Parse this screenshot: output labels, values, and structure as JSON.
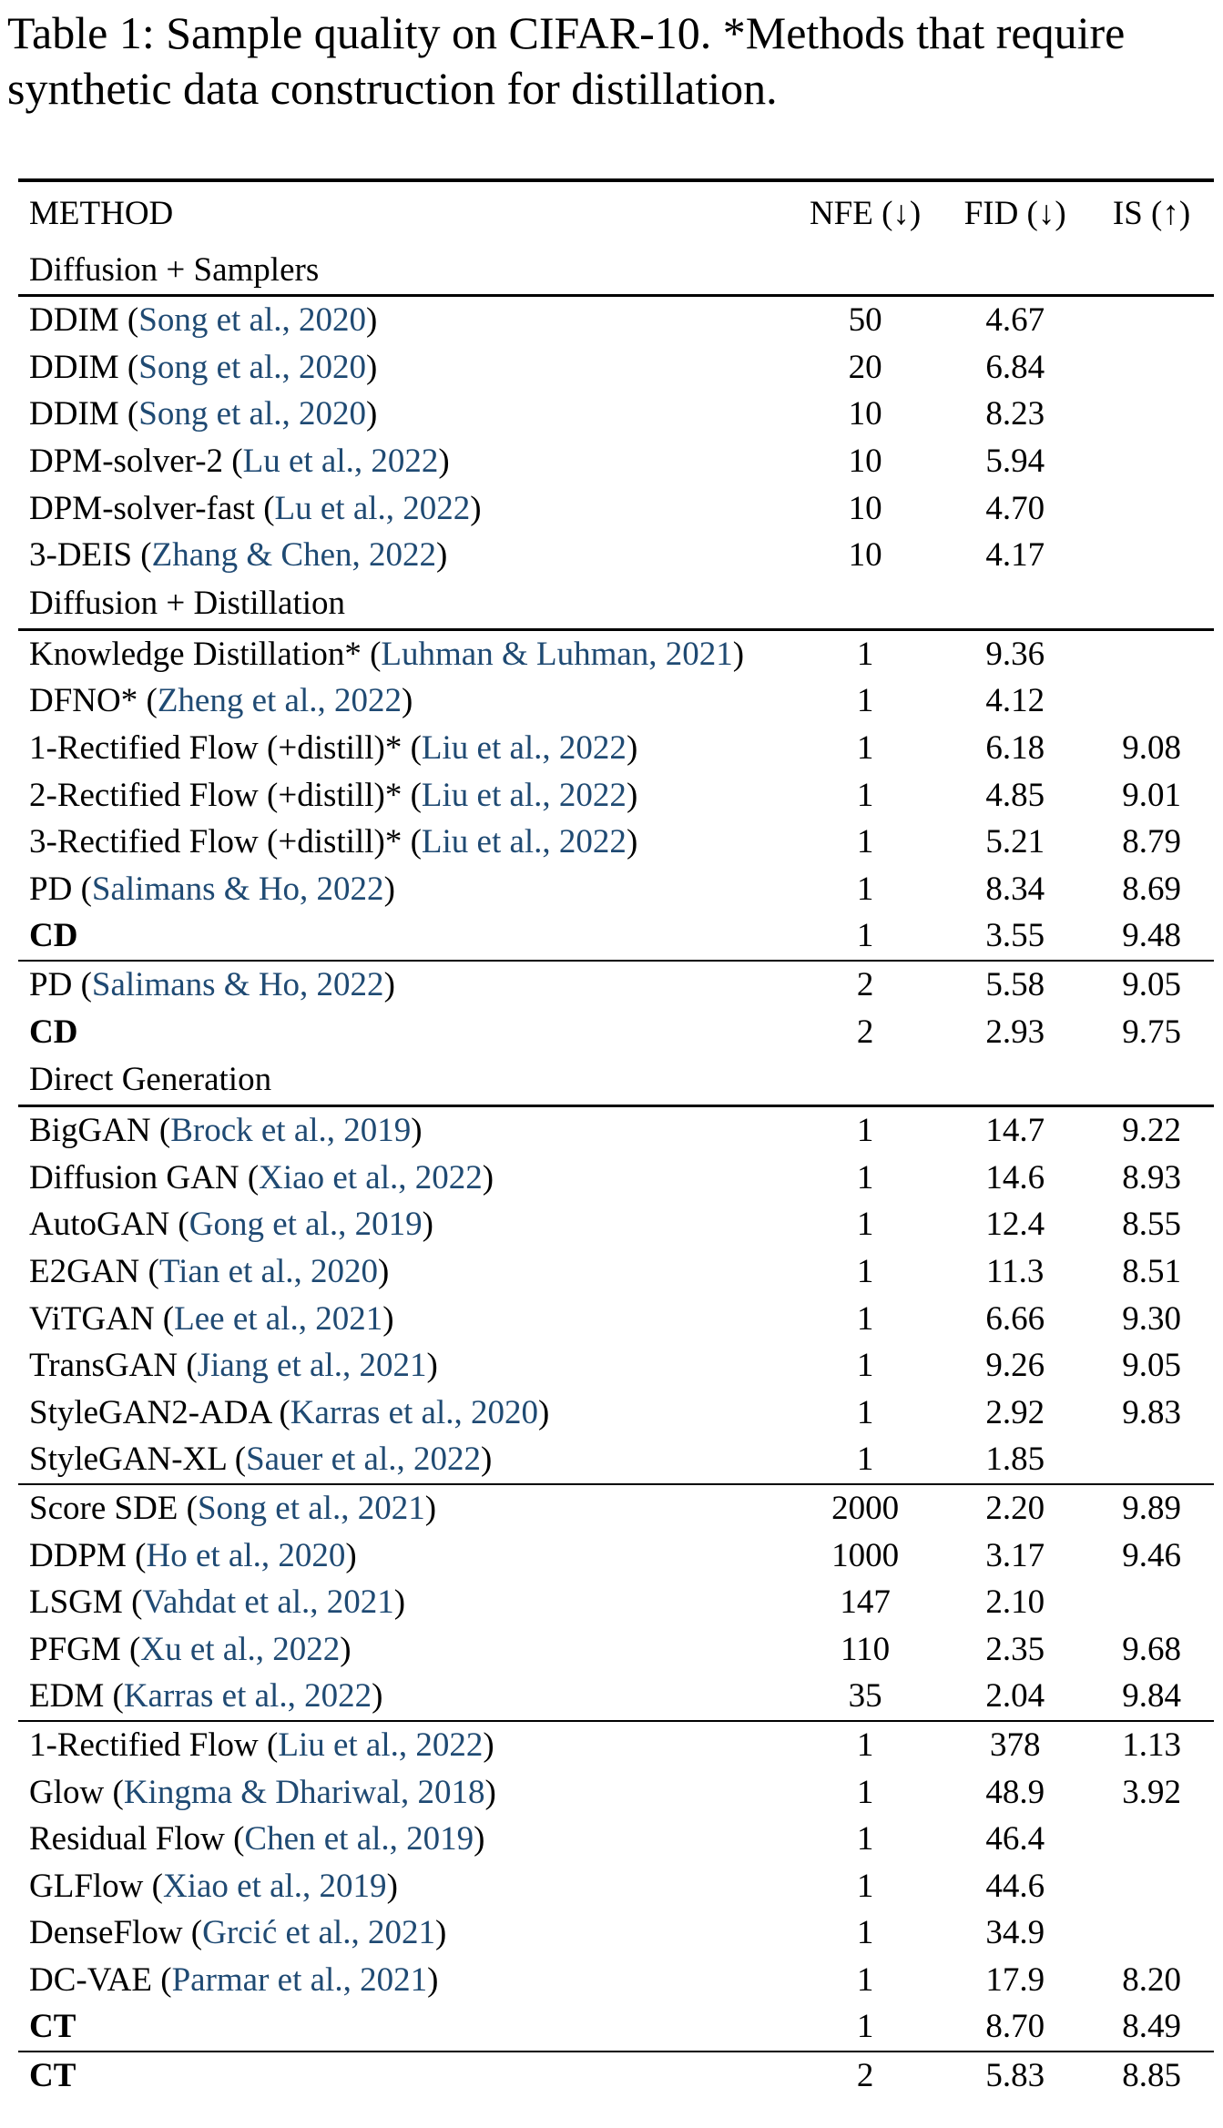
{
  "caption": "Table 1: Sample quality on CIFAR-10. *Methods that require synthetic data construction for distillation.",
  "header": {
    "method": "METHOD",
    "nfe": "NFE (↓)",
    "fid": "FID (↓)",
    "is": "IS (↑)"
  },
  "groups": [
    {
      "title": "Diffusion + Samplers",
      "rows": [
        {
          "m": "DDIM",
          "c": "Song et al., 2020",
          "nfe": "50",
          "fid": "4.67",
          "is": ""
        },
        {
          "m": "DDIM",
          "c": "Song et al., 2020",
          "nfe": "20",
          "fid": "6.84",
          "is": ""
        },
        {
          "m": "DDIM",
          "c": "Song et al., 2020",
          "nfe": "10",
          "fid": "8.23",
          "is": ""
        },
        {
          "m": "DPM-solver-2",
          "c": "Lu et al., 2022",
          "nfe": "10",
          "fid": "5.94",
          "is": ""
        },
        {
          "m": "DPM-solver-fast",
          "c": "Lu et al., 2022",
          "nfe": "10",
          "fid": "4.70",
          "is": ""
        },
        {
          "m": "3-DEIS",
          "c": "Zhang & Chen, 2022",
          "nfe": "10",
          "fid": "4.17",
          "is": "",
          "bfid": true
        }
      ]
    },
    {
      "title": "Diffusion + Distillation",
      "rows": [
        {
          "m": "Knowledge Distillation*",
          "c": "Luhman & Luhman, 2021",
          "nfe": "1",
          "fid": "9.36",
          "is": ""
        },
        {
          "m": "DFNO*",
          "c": "Zheng et al., 2022",
          "nfe": "1",
          "fid": "4.12",
          "is": ""
        },
        {
          "m": "1-Rectified Flow (+distill)*",
          "c": "Liu et al., 2022",
          "nfe": "1",
          "fid": "6.18",
          "is": "9.08"
        },
        {
          "m": "2-Rectified Flow (+distill)*",
          "c": "Liu et al., 2022",
          "nfe": "1",
          "fid": "4.85",
          "is": "9.01"
        },
        {
          "m": "3-Rectified Flow (+distill)*",
          "c": "Liu et al., 2022",
          "nfe": "1",
          "fid": "5.21",
          "is": "8.79"
        },
        {
          "m": "PD",
          "c": "Salimans & Ho, 2022",
          "nfe": "1",
          "fid": "8.34",
          "is": "8.69"
        },
        {
          "m": "CD",
          "c": "",
          "nfe": "1",
          "fid": "3.55",
          "is": "9.48",
          "bm": true,
          "bfid": true,
          "bis": true
        },
        {
          "m": "PD",
          "c": "Salimans & Ho, 2022",
          "nfe": "2",
          "fid": "5.58",
          "is": "9.05",
          "rule": true
        },
        {
          "m": "CD",
          "c": "",
          "nfe": "2",
          "fid": "2.93",
          "is": "9.75",
          "bm": true,
          "bfid": true,
          "bis": true
        }
      ]
    },
    {
      "title": "Direct Generation",
      "rows": [
        {
          "m": "BigGAN",
          "c": "Brock et al., 2019",
          "nfe": "1",
          "fid": "14.7",
          "is": "9.22"
        },
        {
          "m": "Diffusion GAN",
          "c": "Xiao et al., 2022",
          "nfe": "1",
          "fid": "14.6",
          "is": "8.93"
        },
        {
          "m": "AutoGAN",
          "c": "Gong et al., 2019",
          "nfe": "1",
          "fid": "12.4",
          "is": "8.55"
        },
        {
          "m": "E2GAN",
          "c": "Tian et al., 2020",
          "nfe": "1",
          "fid": "11.3",
          "is": "8.51"
        },
        {
          "m": "ViTGAN",
          "c": "Lee et al., 2021",
          "nfe": "1",
          "fid": "6.66",
          "is": "9.30"
        },
        {
          "m": "TransGAN",
          "c": "Jiang et al., 2021",
          "nfe": "1",
          "fid": "9.26",
          "is": "9.05"
        },
        {
          "m": "StyleGAN2-ADA",
          "c": "Karras et al., 2020",
          "nfe": "1",
          "fid": "2.92",
          "is": "9.83",
          "bis": true
        },
        {
          "m": "StyleGAN-XL",
          "c": "Sauer et al., 2022",
          "nfe": "1",
          "fid": "1.85",
          "is": "",
          "bfid": true
        },
        {
          "m": "Score SDE",
          "c": "Song et al., 2021",
          "nfe": "2000",
          "fid": "2.20",
          "is": "9.89",
          "bis": true,
          "rule": true
        },
        {
          "m": "DDPM",
          "c": "Ho et al., 2020",
          "nfe": "1000",
          "fid": "3.17",
          "is": "9.46"
        },
        {
          "m": "LSGM",
          "c": "Vahdat et al., 2021",
          "nfe": "147",
          "fid": "2.10",
          "is": ""
        },
        {
          "m": "PFGM",
          "c": "Xu et al., 2022",
          "nfe": "110",
          "fid": "2.35",
          "is": "9.68"
        },
        {
          "m": "EDM",
          "c": "Karras et al., 2022",
          "nfe": "35",
          "fid": "2.04",
          "is": "9.84",
          "bfid": true
        },
        {
          "m": "1-Rectified Flow",
          "c": "Liu et al., 2022",
          "nfe": "1",
          "fid": "378",
          "is": "1.13",
          "rule": true
        },
        {
          "m": "Glow",
          "c": "Kingma & Dhariwal, 2018",
          "nfe": "1",
          "fid": "48.9",
          "is": "3.92"
        },
        {
          "m": "Residual Flow",
          "c": "Chen et al., 2019",
          "nfe": "1",
          "fid": "46.4",
          "is": ""
        },
        {
          "m": "GLFlow",
          "c": "Xiao et al., 2019",
          "nfe": "1",
          "fid": "44.6",
          "is": ""
        },
        {
          "m": "DenseFlow",
          "c": "Grcić et al., 2021",
          "nfe": "1",
          "fid": "34.9",
          "is": ""
        },
        {
          "m": "DC-VAE",
          "c": "Parmar et al., 2021",
          "nfe": "1",
          "fid": "17.9",
          "is": "8.20"
        },
        {
          "m": "CT",
          "c": "",
          "nfe": "1",
          "fid": "8.70",
          "is": "8.49",
          "bm": true,
          "bfid": true,
          "bis": true
        },
        {
          "m": "CT",
          "c": "",
          "nfe": "2",
          "fid": "5.83",
          "is": "8.85",
          "bm": true,
          "bfid": true,
          "bis": true,
          "rule": true
        }
      ]
    }
  ]
}
